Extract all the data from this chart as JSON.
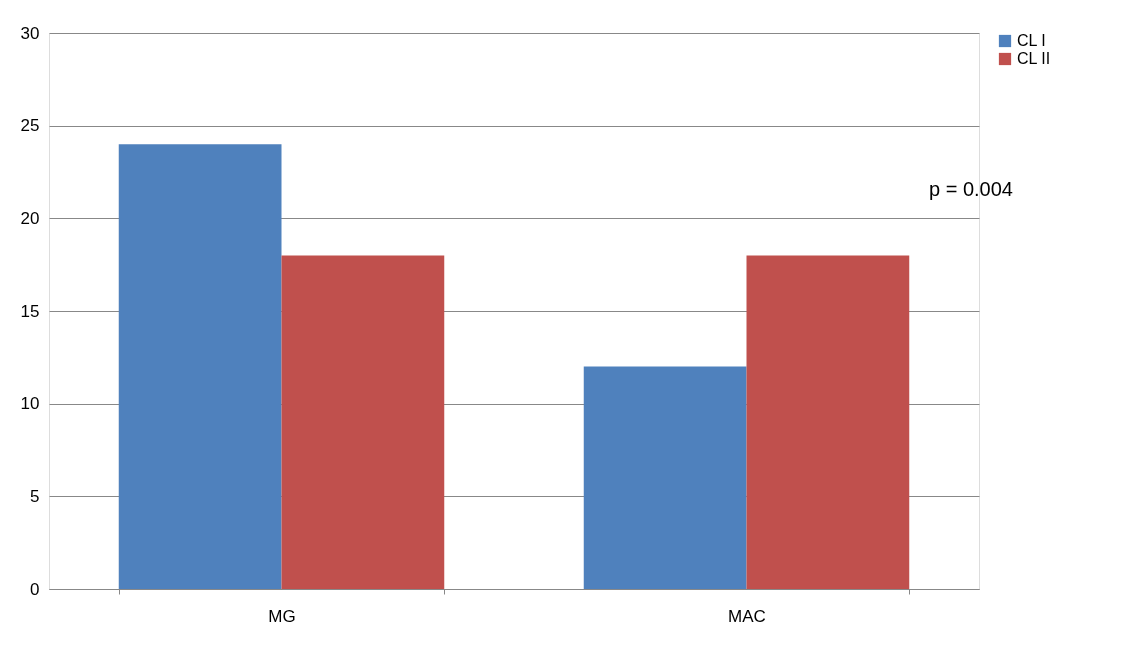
{
  "chart_data": {
    "type": "bar",
    "categories": [
      "MG",
      "MAC"
    ],
    "series": [
      {
        "name": "CL I",
        "color": "#4f81bd",
        "values": [
          24,
          12
        ]
      },
      {
        "name": "CL II",
        "color": "#c0504d",
        "values": [
          18,
          18
        ]
      }
    ],
    "ylim": [
      0,
      30
    ],
    "yticks": [
      0,
      5,
      10,
      15,
      20,
      25,
      30
    ],
    "grid": "y",
    "legend": "right",
    "annotations": [
      "p = 0.004"
    ]
  }
}
